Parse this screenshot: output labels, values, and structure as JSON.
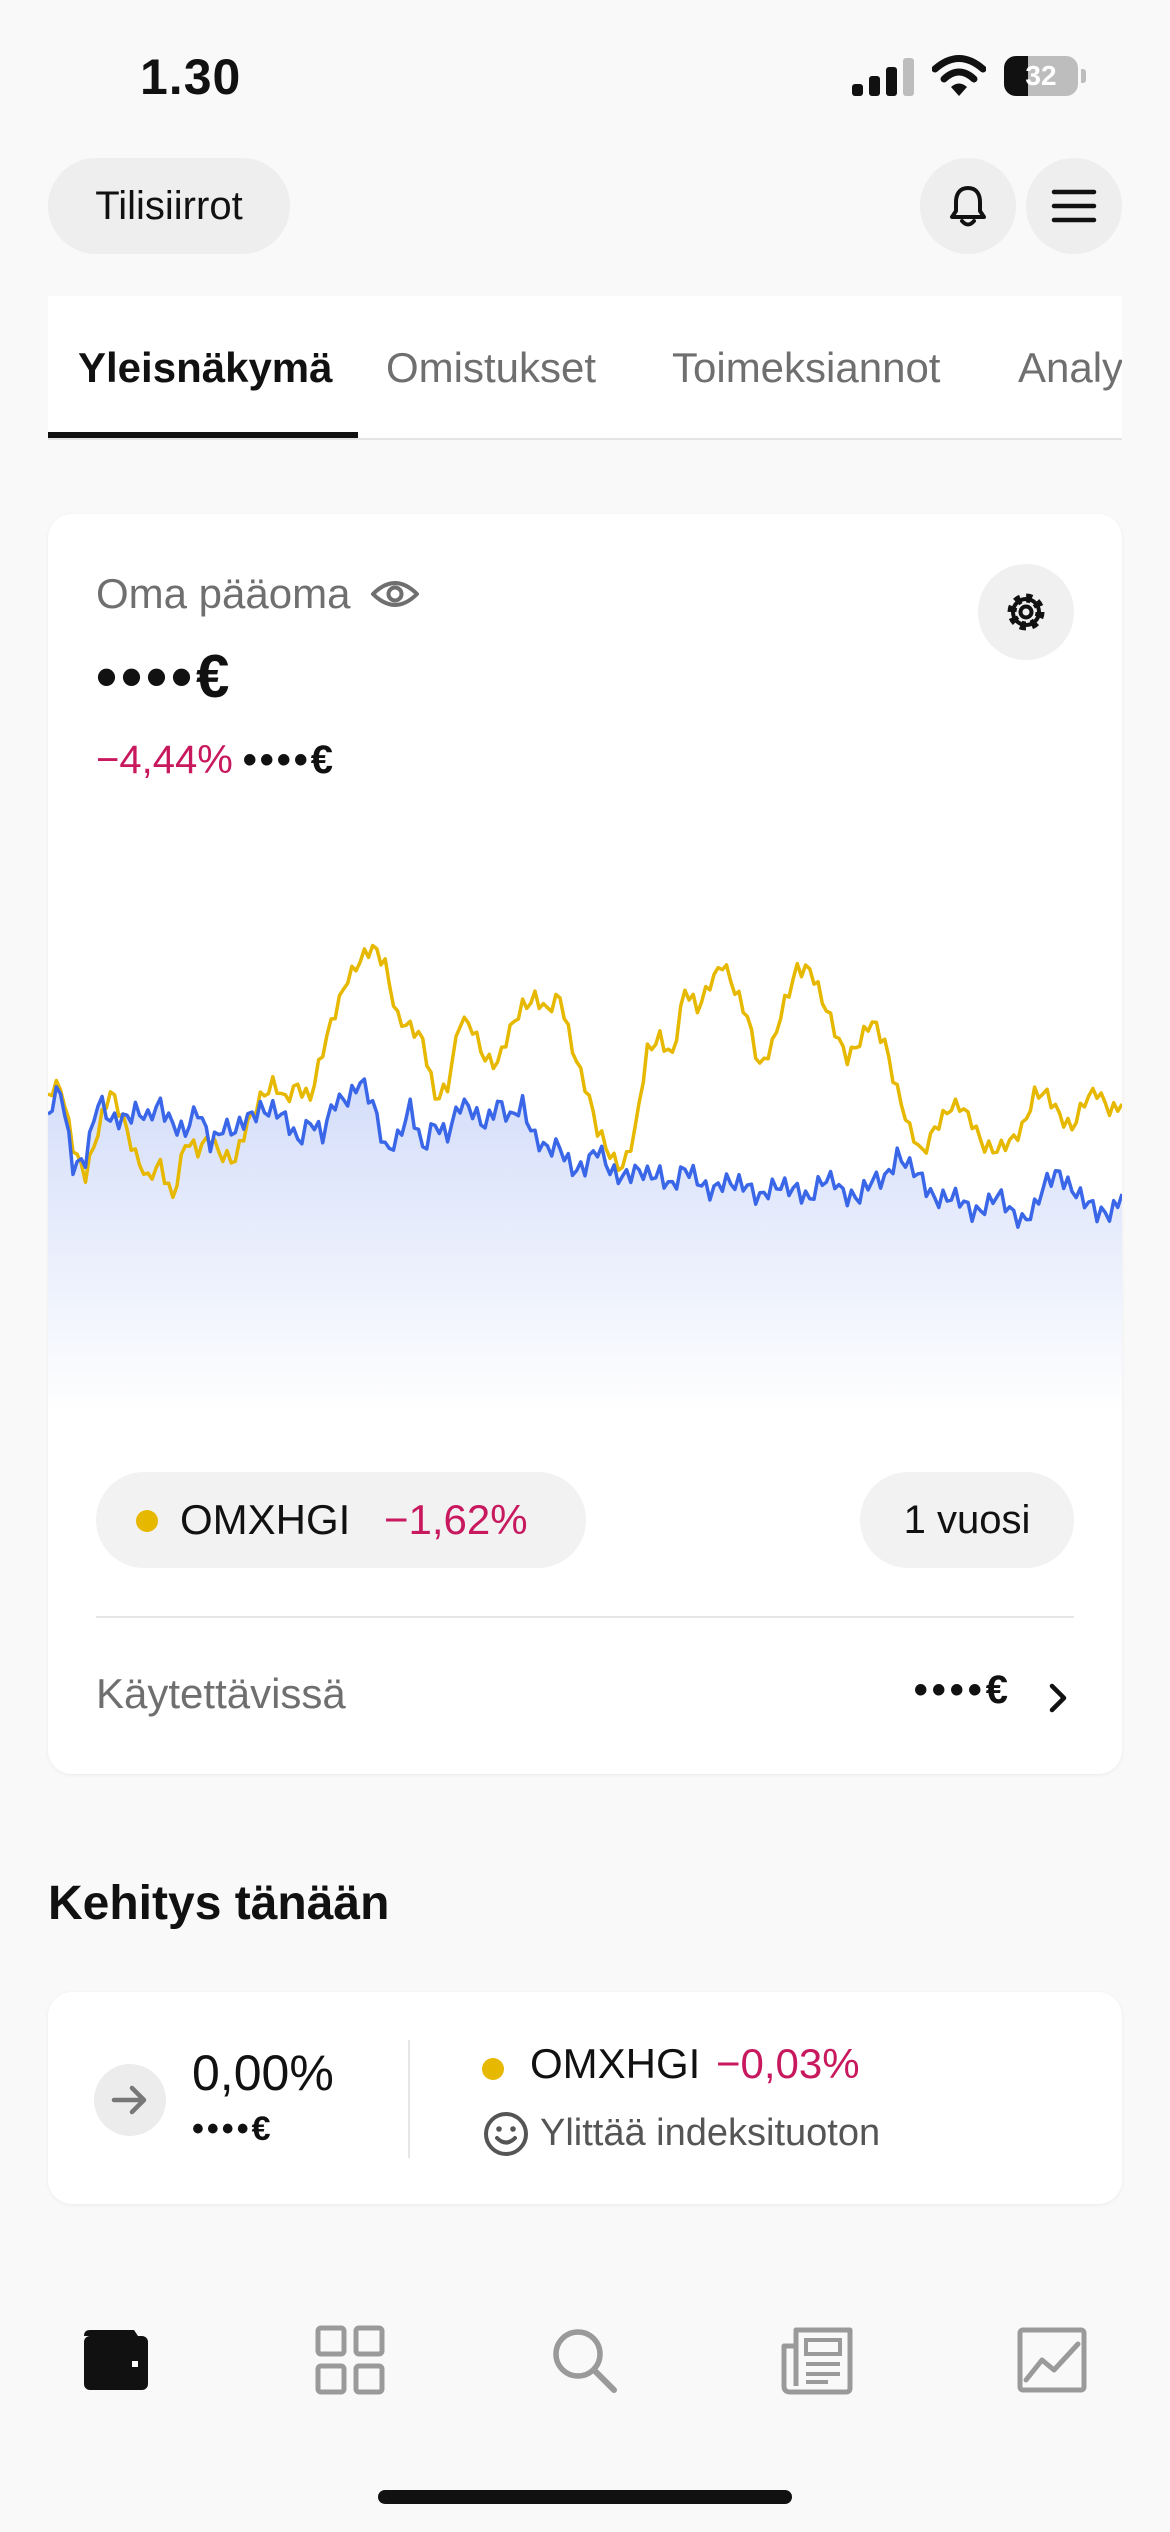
{
  "status_bar": {
    "time": "1.30",
    "battery_level": "32",
    "battery_fraction": 0.32
  },
  "header": {
    "transfers_label": "Tilisiirrot",
    "notifications_icon": "bell-icon",
    "menu_icon": "hamburger-icon"
  },
  "tabs": [
    {
      "label": "Yleisnäkymä",
      "active": true
    },
    {
      "label": "Omistukset",
      "active": false
    },
    {
      "label": "Toimeksiannot",
      "active": false
    },
    {
      "label": "Analyysi",
      "active": false
    }
  ],
  "capital": {
    "label": "Oma pääoma",
    "visibility_icon": "eye-icon",
    "settings_icon": "gear-icon",
    "value": "••••€",
    "change_pct": "−4,44%",
    "change_amount": "••••€"
  },
  "chart": {
    "index_series_color": "#e6b800",
    "portfolio_series_color": "#3a66e8",
    "index_name": "OMXHGI",
    "index_change": "−1,62%",
    "period": "1 vuosi"
  },
  "available": {
    "label": "Käytettävissä",
    "value": "••••€"
  },
  "today": {
    "title": "Kehitys tänään",
    "change_pct": "0,00%",
    "change_amount": "••••€",
    "index_name": "OMXHGI",
    "index_change": "−0,03%",
    "beats_index": "Ylittää indeksituoton"
  },
  "bottom_nav": [
    {
      "icon": "wallet-icon",
      "active": true
    },
    {
      "icon": "grid-icon",
      "active": false
    },
    {
      "icon": "search-icon",
      "active": false
    },
    {
      "icon": "news-icon",
      "active": false
    },
    {
      "icon": "chart-icon",
      "active": false
    }
  ],
  "colors": {
    "negative": "#c8195f",
    "index_dot": "#e6b800"
  }
}
